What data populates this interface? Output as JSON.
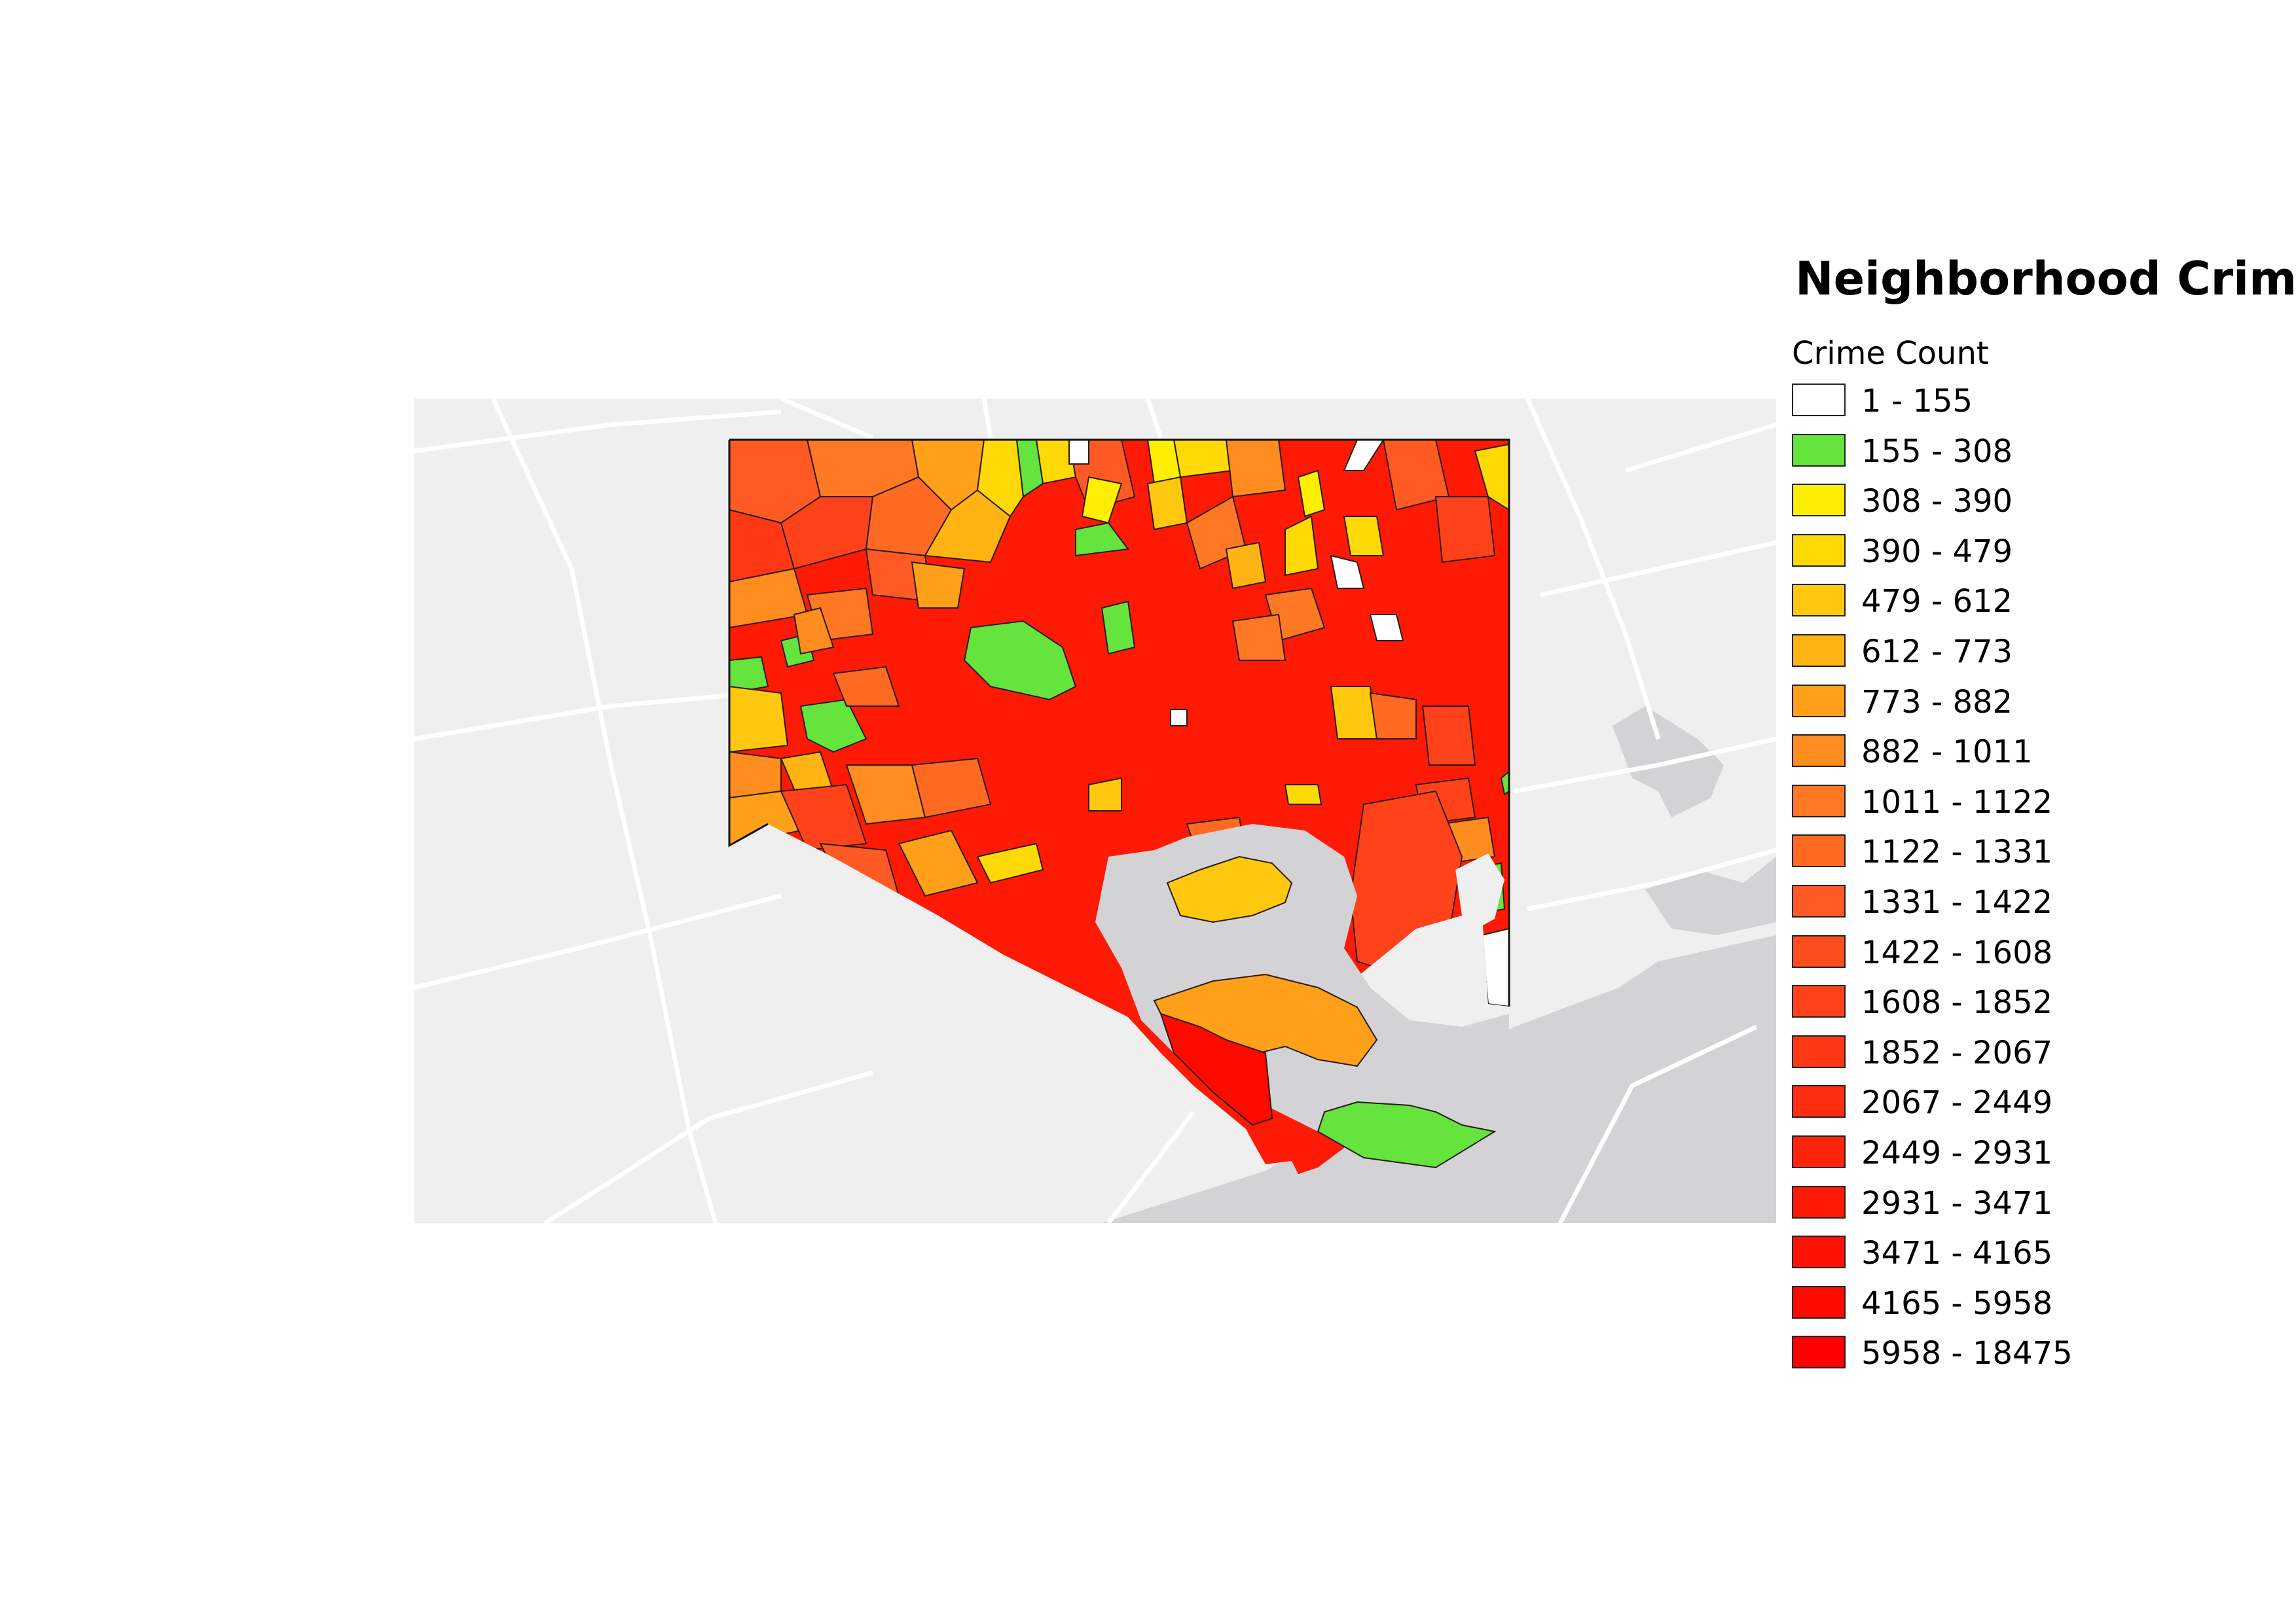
{
  "map": {
    "title": "Neighborhood Crime",
    "legend": {
      "title": "Crime Count",
      "items": [
        {
          "label": "1 - 155",
          "color": "#ffffff"
        },
        {
          "label": "155 - 308",
          "color": "#64e43c"
        },
        {
          "label": "308 - 390",
          "color": "#ffee00"
        },
        {
          "label": "390 - 479",
          "color": "#ffd905"
        },
        {
          "label": "479 - 612",
          "color": "#ffc80f"
        },
        {
          "label": "612 - 773",
          "color": "#ffb414"
        },
        {
          "label": "773 - 882",
          "color": "#ffa01a"
        },
        {
          "label": "882 - 1011",
          "color": "#ff8c1e"
        },
        {
          "label": "1011 - 1122",
          "color": "#ff7823"
        },
        {
          "label": "1122 - 1331",
          "color": "#ff6a23"
        },
        {
          "label": "1331 - 1422",
          "color": "#ff5a23"
        },
        {
          "label": "1422 - 1608",
          "color": "#ff4e1e"
        },
        {
          "label": "1608 - 1852",
          "color": "#ff4219"
        },
        {
          "label": "1852 - 2067",
          "color": "#ff3714"
        },
        {
          "label": "2067 - 2449",
          "color": "#ff2d0f"
        },
        {
          "label": "2449 - 2931",
          "color": "#ff230a"
        },
        {
          "label": "2931 - 3471",
          "color": "#ff1a05"
        },
        {
          "label": "3471 - 4165",
          "color": "#ff1203"
        },
        {
          "label": "4165 - 5958",
          "color": "#ff0a00"
        },
        {
          "label": "5958 - 18475",
          "color": "#ff0000"
        }
      ]
    }
  }
}
